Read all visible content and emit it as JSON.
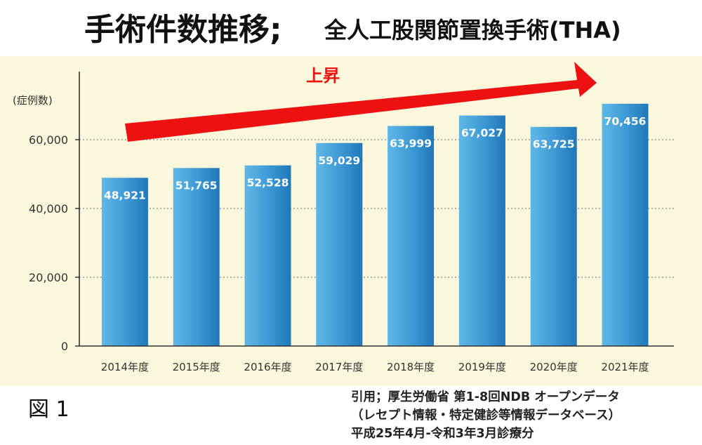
{
  "title": {
    "main": "手術件数推移;",
    "sub": "全人工股関節置換手術(THA)"
  },
  "figure_label": "図 1",
  "citation": {
    "line1": "引用；厚生労働省 第1-8回NDB オープンデータ",
    "line2": "（レセプト情報・特定健診等情報データベース）",
    "line3": "平成25年4月-令和3年3月診療分"
  },
  "colors": {
    "panel_background": "#fbf7dc",
    "bar_light": "#5fb8e6",
    "bar_dark": "#1f78b8",
    "arrow": "#ee1111"
  },
  "chart_data": {
    "type": "bar",
    "categories": [
      "2014年度",
      "2015年度",
      "2016年度",
      "2017年度",
      "2018年度",
      "2019年度",
      "2020年度",
      "2021年度"
    ],
    "values": [
      48921,
      51765,
      52528,
      59029,
      63999,
      67027,
      63725,
      70456
    ],
    "value_labels": [
      "48,921",
      "51,765",
      "52,528",
      "59,029",
      "63,999",
      "67,027",
      "63,725",
      "70,456"
    ],
    "ylabel": "(症例数)",
    "ylim": [
      0,
      80000
    ],
    "yticks": [
      0,
      20000,
      40000,
      60000
    ],
    "ytick_labels": [
      "0",
      "20,000",
      "40,000",
      "60,000"
    ],
    "grid": "horizontal dotted",
    "annotation": {
      "type": "upward arrow",
      "label": "上昇"
    }
  }
}
